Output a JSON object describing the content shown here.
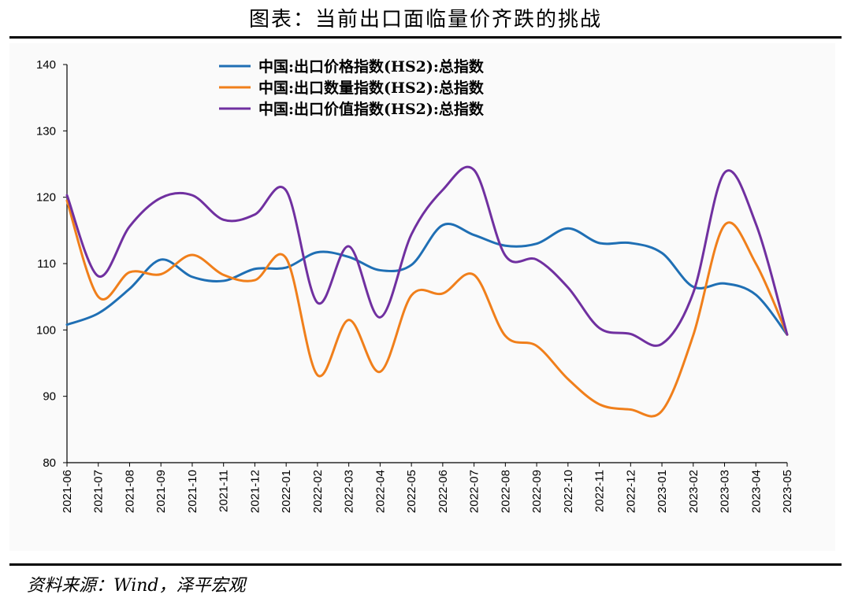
{
  "title": "图表：当前出口面临量价齐跌的挑战",
  "source": "资料来源：Wind，泽平宏观",
  "chart_data": {
    "type": "line",
    "ylim": [
      80,
      140
    ],
    "yticks": [
      80,
      90,
      100,
      110,
      120,
      130,
      140
    ],
    "categories": [
      "2021-06",
      "2021-07",
      "2021-08",
      "2021-09",
      "2021-10",
      "2021-11",
      "2021-12",
      "2022-01",
      "2022-02",
      "2022-03",
      "2022-04",
      "2022-05",
      "2022-06",
      "2022-07",
      "2022-08",
      "2022-09",
      "2022-10",
      "2022-11",
      "2022-12",
      "2023-01",
      "2023-02",
      "2023-03",
      "2023-04",
      "2023-05"
    ],
    "legend_position": "top-center",
    "grid": false,
    "series": [
      {
        "name": "中国:出口价格指数(HS2):总指数",
        "color": "#1f6fb4",
        "values": [
          100.8,
          102.5,
          106.2,
          110.6,
          108.0,
          107.4,
          109.2,
          109.4,
          111.7,
          111.0,
          109.0,
          109.8,
          115.8,
          114.3,
          112.7,
          113.0,
          115.3,
          113.1,
          113.1,
          111.6,
          106.5,
          107.0,
          105.3,
          99.3
        ]
      },
      {
        "name": "中国:出口数量指数(HS2):总指数",
        "color": "#f07f1b",
        "values": [
          119.5,
          105.0,
          108.7,
          108.4,
          111.3,
          108.3,
          107.5,
          110.8,
          93.2,
          101.5,
          93.7,
          105.2,
          105.5,
          108.3,
          99.1,
          97.6,
          92.6,
          88.8,
          88.0,
          87.8,
          99.2,
          115.8,
          110.0,
          99.3
        ]
      },
      {
        "name": "中国:出口价值指数(HS2):总指数",
        "color": "#7030a0",
        "values": [
          120.3,
          108.1,
          115.6,
          119.9,
          120.3,
          116.6,
          117.4,
          121.0,
          104.1,
          112.6,
          101.9,
          114.4,
          121.1,
          124.1,
          111.2,
          110.6,
          106.4,
          100.3,
          99.4,
          97.9,
          105.6,
          123.7,
          116.0,
          99.3
        ]
      }
    ]
  }
}
